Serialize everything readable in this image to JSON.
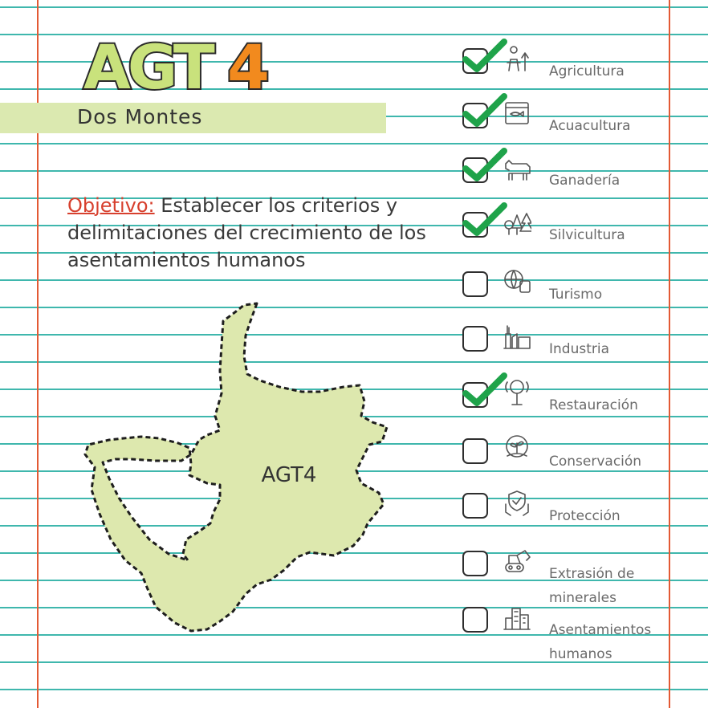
{
  "header": {
    "logo_text": "AGT4",
    "subtitle": "Dos Montes"
  },
  "objective": {
    "label": "Objetivo:",
    "text": "Establecer los criterios y delimitaciones del crecimiento de los asentamientos humanos"
  },
  "map": {
    "label": "AGT4",
    "fill_color": "#dde8ae"
  },
  "activities": [
    {
      "label": "Agricultura",
      "checked": true,
      "icon": "farmer-icon"
    },
    {
      "label": "Acuacultura",
      "checked": true,
      "icon": "fish-tank-icon"
    },
    {
      "label": "Ganadería",
      "checked": true,
      "icon": "cow-icon"
    },
    {
      "label": "Silvicultura",
      "checked": true,
      "icon": "trees-icon"
    },
    {
      "label": "Turismo",
      "checked": false,
      "icon": "globe-luggage-icon"
    },
    {
      "label": "Industria",
      "checked": false,
      "icon": "factory-icon"
    },
    {
      "label": "Restauración",
      "checked": true,
      "icon": "restoration-tree-icon"
    },
    {
      "label": "Conservación",
      "checked": false,
      "icon": "hand-plant-icon"
    },
    {
      "label": "Protección",
      "checked": false,
      "icon": "hands-shield-icon"
    },
    {
      "label": "Extrasión de minerales",
      "checked": false,
      "icon": "excavator-icon"
    },
    {
      "label": "Asentamientos humanos",
      "checked": false,
      "icon": "city-icon"
    }
  ],
  "colors": {
    "rule_lines": "#3fb7ad",
    "margin": "#e35a34",
    "check": "#1fa34a",
    "logo_fill": "#c9e27c",
    "logo_accent": "#f28a1e"
  }
}
